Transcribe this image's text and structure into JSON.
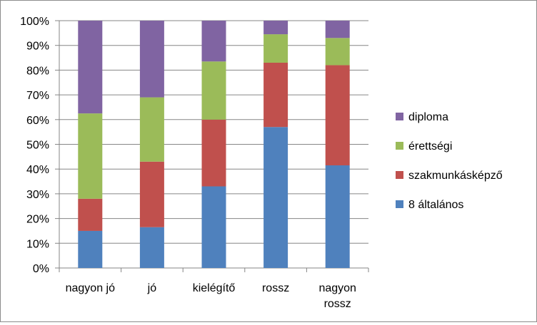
{
  "chart_data": {
    "type": "bar",
    "stacked": true,
    "percent_stacked": true,
    "title": "",
    "xlabel": "",
    "ylabel": "",
    "ylim": [
      0,
      100
    ],
    "grid": "horizontal",
    "legend_position": "right",
    "categories": [
      "nagyon jó",
      "jó",
      "kielégítő",
      "rossz",
      "nagyon rossz"
    ],
    "y_ticks": [
      "0%",
      "10%",
      "20%",
      "30%",
      "40%",
      "50%",
      "60%",
      "70%",
      "80%",
      "90%",
      "100%"
    ],
    "series": [
      {
        "name": "8 általános",
        "color": "#4f81bd",
        "values": [
          15,
          16.5,
          33,
          57,
          41.5
        ]
      },
      {
        "name": "szakmunkásképző",
        "color": "#c0504d",
        "values": [
          13,
          26.5,
          27,
          26,
          40.5
        ]
      },
      {
        "name": "érettségi",
        "color": "#9bbb59",
        "values": [
          34.5,
          26,
          23.5,
          11.5,
          11
        ]
      },
      {
        "name": "diploma",
        "color": "#8064a2",
        "values": [
          37.5,
          31,
          16.5,
          5.5,
          7
        ]
      }
    ]
  }
}
